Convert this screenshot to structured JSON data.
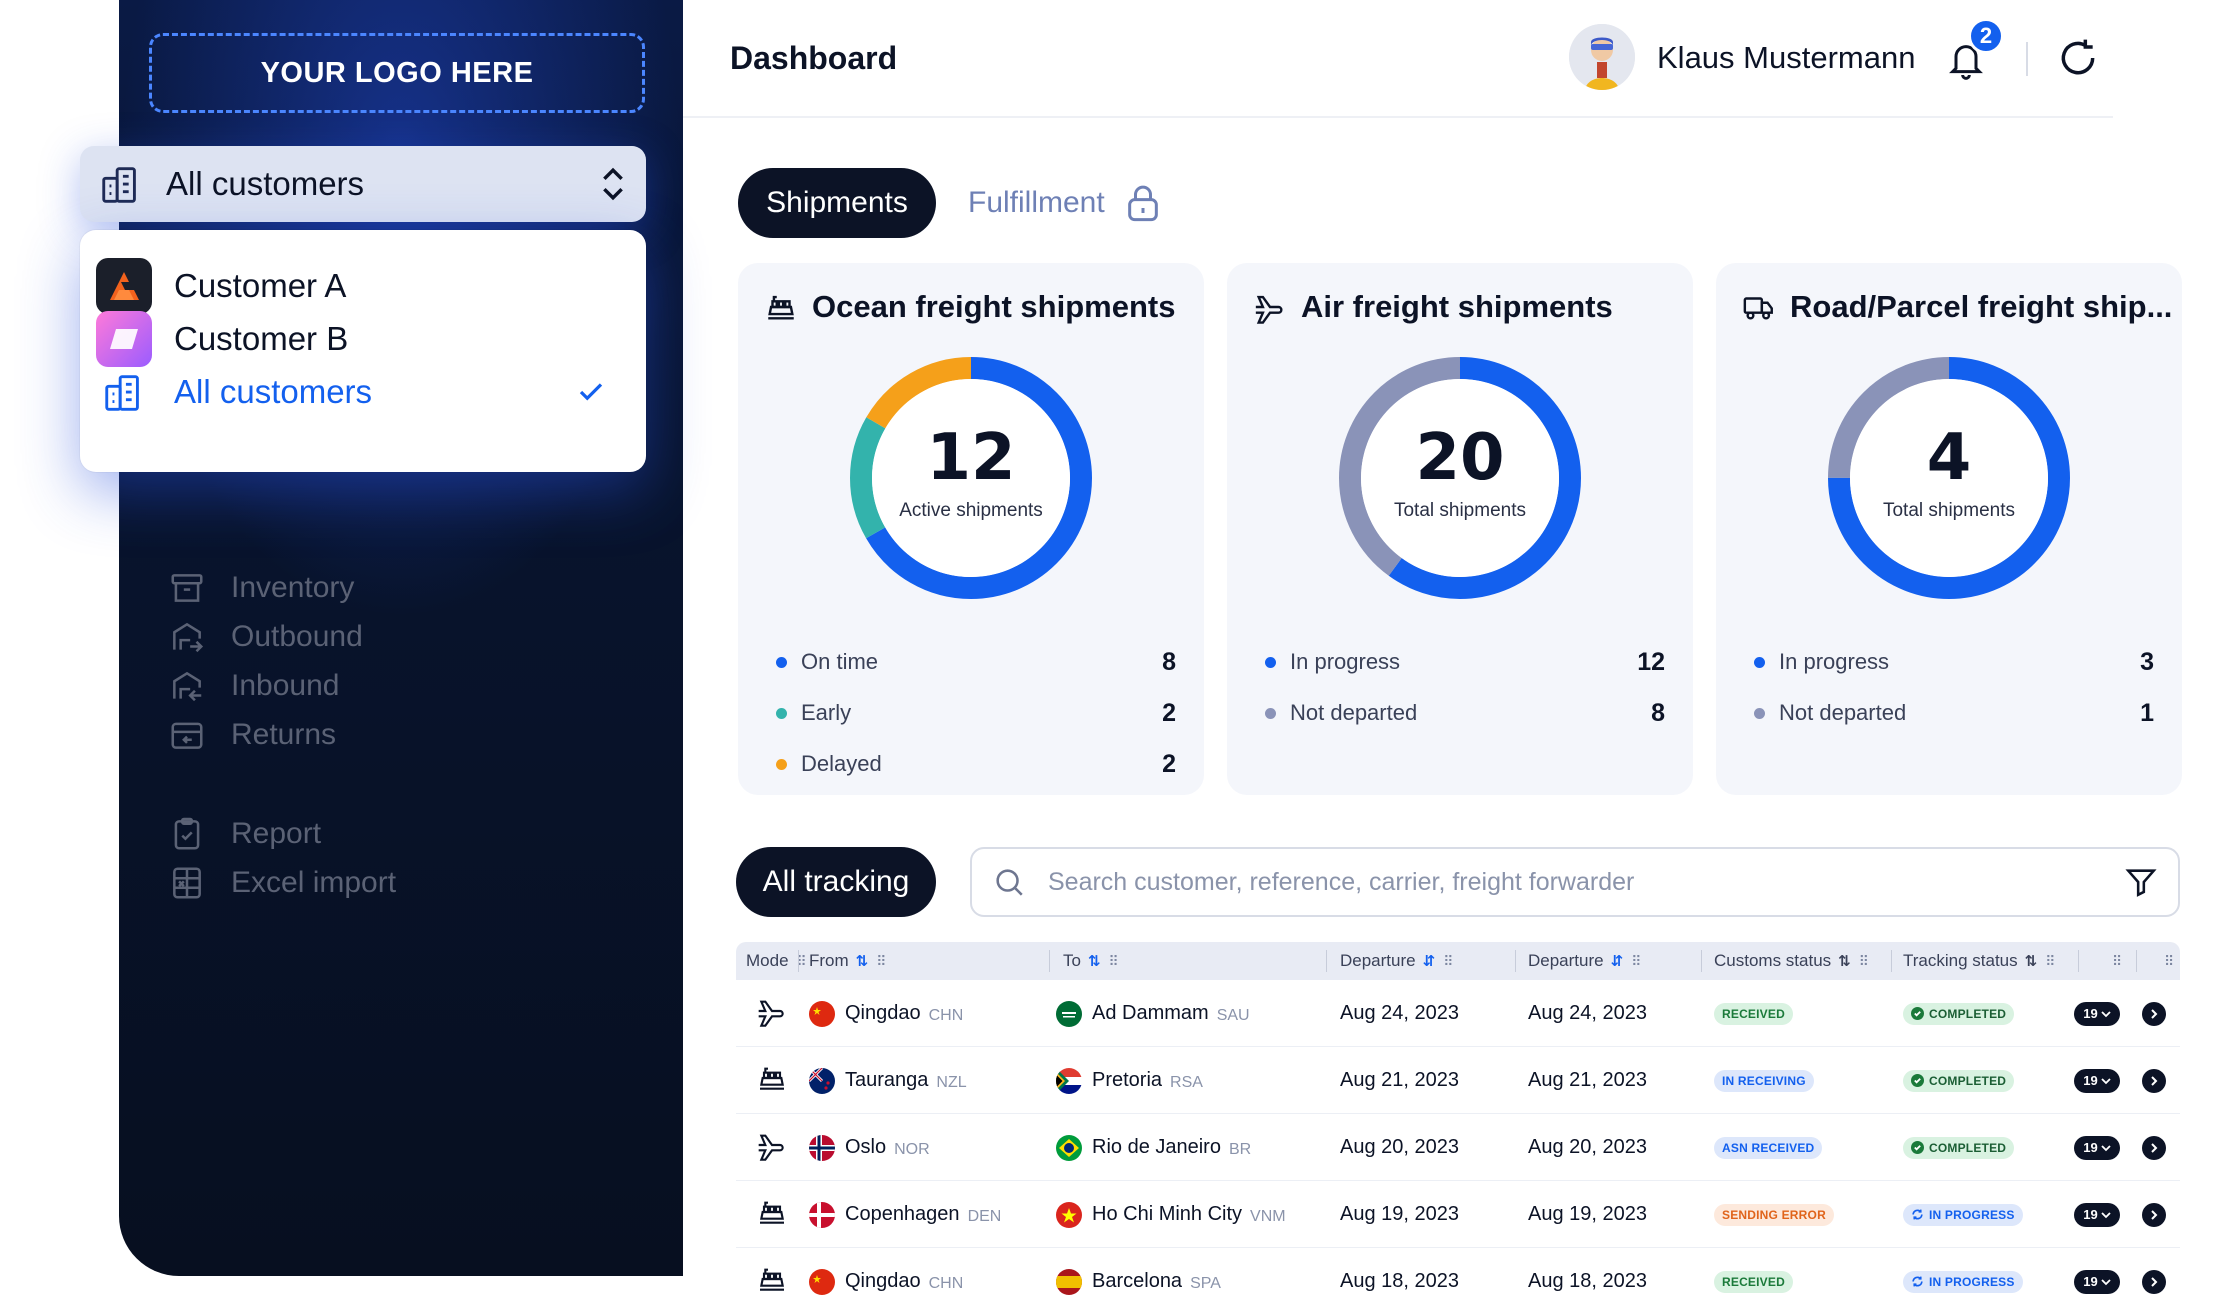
{
  "sidebar": {
    "logo_text": "YOUR LOGO HERE",
    "nav": [
      {
        "label": "Inventory",
        "icon": "inventory-icon"
      },
      {
        "label": "Outbound",
        "icon": "outbound-icon"
      },
      {
        "label": "Inbound",
        "icon": "inbound-icon"
      },
      {
        "label": "Returns",
        "icon": "returns-icon"
      },
      {
        "label": "Report",
        "icon": "report-icon"
      },
      {
        "label": "Excel import",
        "icon": "excel-import-icon"
      }
    ]
  },
  "customer_select": {
    "selected": "All customers",
    "options": [
      {
        "label": "Customer A",
        "icon": "customer-a-logo"
      },
      {
        "label": "Customer B",
        "icon": "customer-b-logo"
      },
      {
        "label": "All customers",
        "icon": "buildings-icon",
        "active": true
      }
    ]
  },
  "header": {
    "title": "Dashboard",
    "user_name": "Klaus Mustermann",
    "notification_count": "2"
  },
  "tabs": {
    "shipments": "Shipments",
    "fulfillment": "Fulfillment"
  },
  "cards": [
    {
      "title": "Ocean freight shipments",
      "icon": "ship-icon",
      "value": "12",
      "label": "Active shipments",
      "legend": [
        {
          "label": "On time",
          "value": "8",
          "color": "#1360ee"
        },
        {
          "label": "Early",
          "value": "2",
          "color": "#33b3ac"
        },
        {
          "label": "Delayed",
          "value": "2",
          "color": "#f5a01a"
        }
      ]
    },
    {
      "title": "Air freight shipments",
      "icon": "plane-icon",
      "value": "20",
      "label": "Total shipments",
      "legend": [
        {
          "label": "In progress",
          "value": "12",
          "color": "#1360ee"
        },
        {
          "label": "Not departed",
          "value": "8",
          "color": "#8a93b8"
        }
      ]
    },
    {
      "title": "Road/Parcel freight ship...",
      "icon": "truck-icon",
      "value": "4",
      "label": "Total shipments",
      "legend": [
        {
          "label": "In progress",
          "value": "3",
          "color": "#1360ee"
        },
        {
          "label": "Not departed",
          "value": "1",
          "color": "#8a93b8"
        }
      ]
    }
  ],
  "tracking": {
    "tab_label": "All tracking",
    "search_placeholder": "Search customer, reference, carrier, freight forwarder",
    "columns": {
      "mode": "Mode",
      "from": "From",
      "to": "To",
      "departure1": "Departure",
      "departure2": "Departure",
      "customs": "Customs status",
      "tracking": "Tracking status"
    },
    "rows": [
      {
        "mode": "plane-icon",
        "from": "Qingdao",
        "from_code": "CHN",
        "from_flag": "china",
        "to": "Ad Dammam",
        "to_code": "SAU",
        "to_flag": "saudi",
        "dep1": "Aug 24, 2023",
        "dep2": "Aug 24, 2023",
        "customs": "RECEIVED",
        "customs_style": "green",
        "tracking": "COMPLETED",
        "tracking_style": "completed",
        "count": "19"
      },
      {
        "mode": "ship-icon",
        "from": "Tauranga",
        "from_code": "NZL",
        "from_flag": "nz",
        "to": "Pretoria",
        "to_code": "RSA",
        "to_flag": "rsa",
        "dep1": "Aug 21, 2023",
        "dep2": "Aug 21, 2023",
        "customs": "IN RECEIVING",
        "customs_style": "blue",
        "tracking": "COMPLETED",
        "tracking_style": "completed",
        "count": "19"
      },
      {
        "mode": "plane-icon",
        "from": "Oslo",
        "from_code": "NOR",
        "from_flag": "norway",
        "to": "Rio de Janeiro",
        "to_code": "BR",
        "to_flag": "brazil",
        "dep1": "Aug 20, 2023",
        "dep2": "Aug 20, 2023",
        "customs": "ASN RECEIVED",
        "customs_style": "blue",
        "tracking": "COMPLETED",
        "tracking_style": "completed",
        "count": "19"
      },
      {
        "mode": "ship-icon",
        "from": "Copenhagen",
        "from_code": "DEN",
        "from_flag": "denmark",
        "to": "Ho Chi Minh City",
        "to_code": "VNM",
        "to_flag": "vietnam",
        "dep1": "Aug 19, 2023",
        "dep2": "Aug 19, 2023",
        "customs": "SENDING ERROR",
        "customs_style": "orange",
        "tracking": "IN PROGRESS",
        "tracking_style": "progress",
        "count": "19"
      },
      {
        "mode": "ship-icon",
        "from": "Qingdao",
        "from_code": "CHN",
        "from_flag": "china",
        "to": "Barcelona",
        "to_code": "SPA",
        "to_flag": "spain",
        "dep1": "Aug 18, 2023",
        "dep2": "Aug 18, 2023",
        "customs": "RECEIVED",
        "customs_style": "green",
        "tracking": "IN PROGRESS",
        "tracking_style": "progress",
        "count": "19"
      }
    ]
  }
}
